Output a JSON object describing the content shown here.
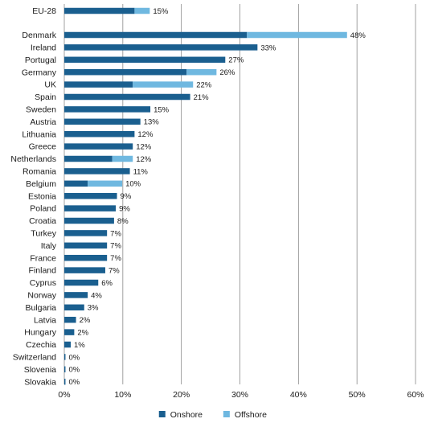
{
  "chart_data": {
    "type": "bar",
    "orientation": "horizontal",
    "stacked": true,
    "categories": [
      "EU-28",
      "Denmark",
      "Ireland",
      "Portugal",
      "Germany",
      "UK",
      "Spain",
      "Sweden",
      "Austria",
      "Lithuania",
      "Greece",
      "Netherlands",
      "Romania",
      "Belgium",
      "Estonia",
      "Poland",
      "Croatia",
      "Turkey",
      "Italy",
      "France",
      "Finland",
      "Cyprus",
      "Norway",
      "Bulgaria",
      "Latvia",
      "Hungary",
      "Czechia",
      "Switzerland",
      "Slovenia",
      "Slovakia"
    ],
    "series": [
      {
        "name": "Onshore",
        "color": "#1a5f8f",
        "values": [
          12.0,
          31.2,
          33.0,
          27.5,
          20.9,
          11.7,
          21.5,
          14.7,
          13.0,
          12.0,
          11.7,
          8.2,
          11.2,
          4.0,
          9.0,
          8.8,
          8.5,
          7.3,
          7.3,
          7.3,
          7.0,
          5.8,
          4.0,
          3.4,
          2.0,
          1.7,
          1.1,
          0.2,
          0.2,
          0.2
        ]
      },
      {
        "name": "Offshore",
        "color": "#6fb8e0",
        "values": [
          2.6,
          17.1,
          0,
          0,
          5.1,
          10.3,
          0,
          0,
          0,
          0,
          0,
          3.5,
          0,
          5.9,
          0,
          0,
          0,
          0,
          0,
          0,
          0,
          0,
          0,
          0,
          0,
          0,
          0,
          0,
          0,
          0
        ]
      }
    ],
    "data_labels": [
      "15%",
      "48%",
      "33%",
      "27%",
      "26%",
      "22%",
      "21%",
      "15%",
      "13%",
      "12%",
      "12%",
      "12%",
      "11%",
      "10%",
      "9%",
      "9%",
      "8%",
      "7%",
      "7%",
      "7%",
      "7%",
      "6%",
      "4%",
      "3%",
      "2%",
      "2%",
      "1%",
      "0%",
      "0%",
      "0%"
    ],
    "gap_after_index": 0,
    "xlim": [
      0,
      60
    ],
    "xticks": [
      0,
      10,
      20,
      30,
      40,
      50,
      60
    ],
    "xtick_labels": [
      "0%",
      "10%",
      "20%",
      "30%",
      "40%",
      "50%",
      "60%"
    ],
    "grid": "vertical",
    "grid_color": "#8a8a8a",
    "legend_position": "bottom-center"
  }
}
